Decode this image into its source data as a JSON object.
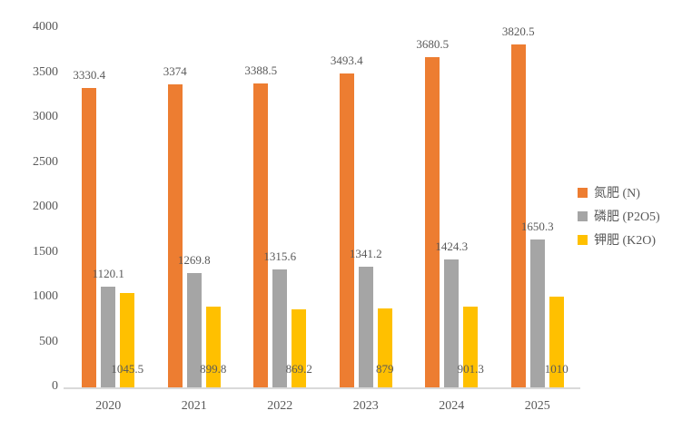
{
  "chart_data": {
    "type": "bar",
    "title": "",
    "xlabel": "",
    "ylabel": "",
    "categories": [
      "2020",
      "2021",
      "2022",
      "2023",
      "2024",
      "2025"
    ],
    "series": [
      {
        "key": "nitrogen",
        "name": "氮肥 (N)",
        "color": "#ED7D31",
        "values": [
          3330.4,
          3374,
          3388.5,
          3493.4,
          3680.5,
          3820.5
        ],
        "label_position": "above"
      },
      {
        "key": "phosphate",
        "name": "磷肥 (P2O5)",
        "color": "#A5A5A5",
        "values": [
          1120.1,
          1269.8,
          1315.6,
          1341.2,
          1424.3,
          1650.3
        ],
        "label_position": "above"
      },
      {
        "key": "potash",
        "name": "钾肥 (K2O)",
        "color": "#FFC000",
        "values": [
          1045.5,
          899.8,
          869.2,
          879,
          901.3,
          1010
        ],
        "label_position": "inside-base"
      }
    ],
    "ylim": [
      0,
      4000
    ],
    "ytick_step": 500,
    "ytick_labels": [
      "0",
      "500",
      "1000",
      "1500",
      "2000",
      "2500",
      "3000",
      "3500",
      "4000"
    ],
    "grid": false,
    "legend_position": "right",
    "data_labels_shown": true
  },
  "colors": {
    "text": "#595959",
    "axis_line": "#D9D9D9",
    "background": "#FFFFFF"
  }
}
